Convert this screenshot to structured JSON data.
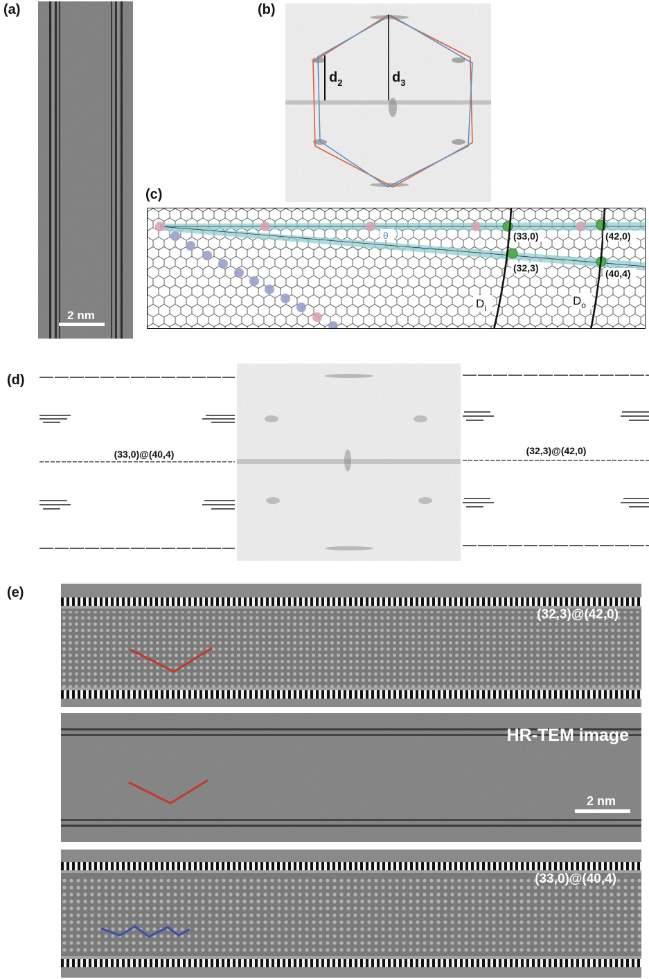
{
  "panels": {
    "a": {
      "label": "(a)",
      "scalebar": "2 nm"
    },
    "b": {
      "label": "(b)",
      "d2_main": "d",
      "d2_sub": "2",
      "d3_main": "d",
      "d3_sub": "3",
      "colors": {
        "hex_red": "#d9603b",
        "hex_blue": "#5b8fc9"
      }
    },
    "c": {
      "label": "(c)",
      "theta": "θ",
      "points": [
        "(33,0)",
        "(42,0)",
        "(32,3)",
        "(40,4)"
      ],
      "di_main": "D",
      "di_sub": "i",
      "do_main": "D",
      "do_sub": "o",
      "colors": {
        "pink": "#d9a0b0",
        "purple": "#9aa0cc",
        "green": "#4caf50",
        "teal": "#8fcfd4"
      }
    },
    "d": {
      "label": "(d)",
      "left_caption": "(33,0)@(40,4)",
      "right_caption": "(32,3)@(42,0)"
    },
    "e": {
      "label": "(e)",
      "top_caption": "(32,3)@(42,0)",
      "middle_caption": "HR-TEM image",
      "middle_scalebar": "2 nm",
      "bottom_caption": "(33,0)@(40,4)",
      "colors": {
        "red_mark": "#c0392b",
        "blue_mark": "#3b4fa8"
      }
    }
  }
}
